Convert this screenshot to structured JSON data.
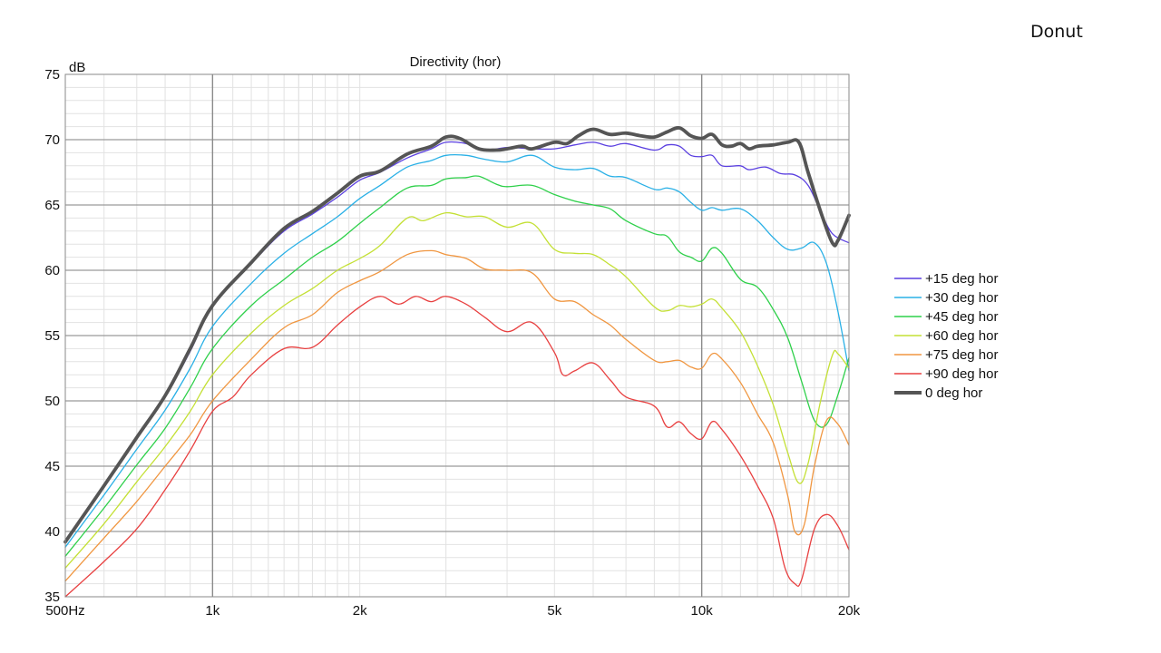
{
  "slide": {
    "label": "Donut"
  },
  "chart_data": {
    "type": "line",
    "title": "Directivity (hor)",
    "ylabel": "dB",
    "xlabel": "",
    "x_scale": "log",
    "xlim": [
      500,
      20000
    ],
    "ylim": [
      35,
      75
    ],
    "grid": true,
    "legend_position": "right",
    "x_ticks": [
      {
        "value": 500,
        "label": "500Hz"
      },
      {
        "value": 1000,
        "label": "1k"
      },
      {
        "value": 2000,
        "label": "2k"
      },
      {
        "value": 5000,
        "label": "5k"
      },
      {
        "value": 10000,
        "label": "10k"
      },
      {
        "value": 20000,
        "label": "20k"
      }
    ],
    "y_ticks": [
      35,
      40,
      45,
      50,
      55,
      60,
      65,
      70,
      75
    ],
    "series": [
      {
        "name": "+15 deg hor",
        "color": "#5a3fe0",
        "width": 1.3,
        "points": [
          [
            500,
            39.3
          ],
          [
            600,
            43.5
          ],
          [
            700,
            47.2
          ],
          [
            800,
            50.3
          ],
          [
            900,
            53.8
          ],
          [
            1000,
            57.2
          ],
          [
            1200,
            60.5
          ],
          [
            1400,
            63
          ],
          [
            1600,
            64.3
          ],
          [
            1800,
            65.6
          ],
          [
            2000,
            66.9
          ],
          [
            2200,
            67.5
          ],
          [
            2500,
            68.6
          ],
          [
            2800,
            69.3
          ],
          [
            3000,
            69.8
          ],
          [
            3300,
            69.7
          ],
          [
            3600,
            69.2
          ],
          [
            4000,
            69.4
          ],
          [
            4500,
            69.3
          ],
          [
            5000,
            69.3
          ],
          [
            5500,
            69.6
          ],
          [
            6000,
            69.8
          ],
          [
            6500,
            69.5
          ],
          [
            7000,
            69.7
          ],
          [
            8000,
            69.2
          ],
          [
            8500,
            69.6
          ],
          [
            9000,
            69.5
          ],
          [
            9500,
            68.8
          ],
          [
            10000,
            68.7
          ],
          [
            10500,
            68.8
          ],
          [
            11000,
            68
          ],
          [
            12000,
            68
          ],
          [
            12500,
            67.7
          ],
          [
            13500,
            67.9
          ],
          [
            14500,
            67.4
          ],
          [
            15500,
            67.3
          ],
          [
            16500,
            66.5
          ],
          [
            17500,
            64.5
          ],
          [
            18500,
            62.8
          ],
          [
            20000,
            62.1
          ]
        ]
      },
      {
        "name": "+30 deg hor",
        "color": "#2ab0e6",
        "width": 1.3,
        "points": [
          [
            500,
            38.8
          ],
          [
            600,
            42.8
          ],
          [
            700,
            46.3
          ],
          [
            800,
            49.3
          ],
          [
            900,
            52.5
          ],
          [
            1000,
            55.7
          ],
          [
            1200,
            59
          ],
          [
            1400,
            61.3
          ],
          [
            1600,
            62.8
          ],
          [
            1800,
            64.1
          ],
          [
            2000,
            65.5
          ],
          [
            2200,
            66.5
          ],
          [
            2500,
            67.9
          ],
          [
            2800,
            68.4
          ],
          [
            3000,
            68.8
          ],
          [
            3300,
            68.8
          ],
          [
            3600,
            68.5
          ],
          [
            4000,
            68.3
          ],
          [
            4500,
            68.8
          ],
          [
            5000,
            67.9
          ],
          [
            5500,
            67.7
          ],
          [
            6000,
            67.8
          ],
          [
            6500,
            67.2
          ],
          [
            7000,
            67.1
          ],
          [
            8000,
            66.2
          ],
          [
            8500,
            66.3
          ],
          [
            9000,
            66
          ],
          [
            9500,
            65.2
          ],
          [
            10000,
            64.6
          ],
          [
            10500,
            64.8
          ],
          [
            11000,
            64.6
          ],
          [
            12000,
            64.7
          ],
          [
            13000,
            63.8
          ],
          [
            14000,
            62.5
          ],
          [
            15000,
            61.6
          ],
          [
            16000,
            61.7
          ],
          [
            17000,
            62.1
          ],
          [
            18000,
            60.5
          ],
          [
            19000,
            56.8
          ],
          [
            20000,
            52.3
          ]
        ]
      },
      {
        "name": "+45 deg hor",
        "color": "#2ed04a",
        "width": 1.3,
        "points": [
          [
            500,
            38.1
          ],
          [
            600,
            41.8
          ],
          [
            700,
            45.1
          ],
          [
            800,
            47.9
          ],
          [
            900,
            51
          ],
          [
            1000,
            54
          ],
          [
            1200,
            57.3
          ],
          [
            1400,
            59.3
          ],
          [
            1600,
            61
          ],
          [
            1800,
            62.2
          ],
          [
            2000,
            63.6
          ],
          [
            2200,
            64.8
          ],
          [
            2500,
            66.3
          ],
          [
            2800,
            66.5
          ],
          [
            3000,
            67
          ],
          [
            3300,
            67.1
          ],
          [
            3500,
            67.2
          ],
          [
            3800,
            66.6
          ],
          [
            4000,
            66.4
          ],
          [
            4500,
            66.5
          ],
          [
            5000,
            65.8
          ],
          [
            5500,
            65.3
          ],
          [
            6000,
            65
          ],
          [
            6500,
            64.7
          ],
          [
            7000,
            63.8
          ],
          [
            8000,
            62.8
          ],
          [
            8500,
            62.6
          ],
          [
            9000,
            61.4
          ],
          [
            9500,
            61
          ],
          [
            10000,
            60.7
          ],
          [
            10500,
            61.7
          ],
          [
            11000,
            61.3
          ],
          [
            12000,
            59.3
          ],
          [
            13000,
            58.7
          ],
          [
            14000,
            57
          ],
          [
            15000,
            54.8
          ],
          [
            16000,
            51.5
          ],
          [
            17000,
            48.5
          ],
          [
            18000,
            48.2
          ],
          [
            19000,
            50.5
          ],
          [
            20000,
            53.3
          ]
        ]
      },
      {
        "name": "+60 deg hor",
        "color": "#c4e035",
        "width": 1.3,
        "points": [
          [
            500,
            37.2
          ],
          [
            600,
            40.6
          ],
          [
            700,
            43.8
          ],
          [
            800,
            46.5
          ],
          [
            900,
            49.2
          ],
          [
            1000,
            52
          ],
          [
            1200,
            55.2
          ],
          [
            1400,
            57.3
          ],
          [
            1600,
            58.6
          ],
          [
            1800,
            60
          ],
          [
            2000,
            60.9
          ],
          [
            2200,
            61.9
          ],
          [
            2500,
            64
          ],
          [
            2700,
            63.8
          ],
          [
            3000,
            64.4
          ],
          [
            3300,
            64.1
          ],
          [
            3600,
            64.1
          ],
          [
            4000,
            63.3
          ],
          [
            4500,
            63.6
          ],
          [
            5000,
            61.6
          ],
          [
            5500,
            61.3
          ],
          [
            6000,
            61.2
          ],
          [
            6500,
            60.4
          ],
          [
            7000,
            59.5
          ],
          [
            8000,
            57.2
          ],
          [
            8500,
            56.9
          ],
          [
            9000,
            57.3
          ],
          [
            9500,
            57.2
          ],
          [
            10000,
            57.4
          ],
          [
            10500,
            57.8
          ],
          [
            11000,
            57.1
          ],
          [
            12000,
            55.3
          ],
          [
            13000,
            52.7
          ],
          [
            14000,
            49.7
          ],
          [
            15000,
            46
          ],
          [
            15800,
            43.7
          ],
          [
            16500,
            45.2
          ],
          [
            17500,
            50
          ],
          [
            18500,
            53.5
          ],
          [
            19000,
            53.6
          ],
          [
            20000,
            52.5
          ]
        ]
      },
      {
        "name": "+75 deg hor",
        "color": "#f09640",
        "width": 1.3,
        "points": [
          [
            500,
            36.2
          ],
          [
            600,
            39.5
          ],
          [
            700,
            42.3
          ],
          [
            800,
            45
          ],
          [
            900,
            47.4
          ],
          [
            1000,
            50
          ],
          [
            1200,
            53.2
          ],
          [
            1400,
            55.6
          ],
          [
            1600,
            56.6
          ],
          [
            1800,
            58.3
          ],
          [
            2000,
            59.2
          ],
          [
            2200,
            59.9
          ],
          [
            2500,
            61.2
          ],
          [
            2800,
            61.5
          ],
          [
            3000,
            61.2
          ],
          [
            3300,
            60.9
          ],
          [
            3600,
            60.1
          ],
          [
            4000,
            60
          ],
          [
            4500,
            59.8
          ],
          [
            5000,
            57.8
          ],
          [
            5500,
            57.6
          ],
          [
            6000,
            56.6
          ],
          [
            6500,
            55.8
          ],
          [
            7000,
            54.7
          ],
          [
            8000,
            53.1
          ],
          [
            8500,
            53
          ],
          [
            9000,
            53.1
          ],
          [
            9500,
            52.6
          ],
          [
            10000,
            52.5
          ],
          [
            10500,
            53.6
          ],
          [
            11000,
            53.2
          ],
          [
            12000,
            51.4
          ],
          [
            13000,
            49
          ],
          [
            14000,
            46.8
          ],
          [
            15000,
            42.7
          ],
          [
            15500,
            40
          ],
          [
            16200,
            40.5
          ],
          [
            17000,
            45
          ],
          [
            18000,
            48.5
          ],
          [
            19000,
            48.2
          ],
          [
            20000,
            46.6
          ]
        ]
      },
      {
        "name": "+90 deg hor",
        "color": "#e84040",
        "width": 1.3,
        "points": [
          [
            500,
            35
          ],
          [
            600,
            37.7
          ],
          [
            700,
            40.2
          ],
          [
            800,
            43.2
          ],
          [
            900,
            46.2
          ],
          [
            1000,
            49.2
          ],
          [
            1100,
            50.3
          ],
          [
            1200,
            52
          ],
          [
            1400,
            54
          ],
          [
            1600,
            54.1
          ],
          [
            1800,
            55.8
          ],
          [
            2000,
            57.2
          ],
          [
            2200,
            58
          ],
          [
            2400,
            57.4
          ],
          [
            2600,
            58
          ],
          [
            2800,
            57.6
          ],
          [
            3000,
            58
          ],
          [
            3300,
            57.4
          ],
          [
            3600,
            56.4
          ],
          [
            4000,
            55.3
          ],
          [
            4500,
            56
          ],
          [
            5000,
            53.7
          ],
          [
            5200,
            52
          ],
          [
            5500,
            52.3
          ],
          [
            6000,
            52.9
          ],
          [
            6500,
            51.6
          ],
          [
            7000,
            50.3
          ],
          [
            8000,
            49.6
          ],
          [
            8500,
            48
          ],
          [
            9000,
            48.4
          ],
          [
            9500,
            47.5
          ],
          [
            10000,
            47.1
          ],
          [
            10500,
            48.4
          ],
          [
            11000,
            47.8
          ],
          [
            12000,
            45.8
          ],
          [
            13000,
            43.5
          ],
          [
            14000,
            41
          ],
          [
            14800,
            37.2
          ],
          [
            15500,
            36
          ],
          [
            16000,
            36.3
          ],
          [
            17000,
            40.2
          ],
          [
            18000,
            41.3
          ],
          [
            19000,
            40.4
          ],
          [
            20000,
            38.6
          ]
        ]
      },
      {
        "name": "0 deg hor",
        "color": "#555555",
        "width": 3.8,
        "points": [
          [
            500,
            39.2
          ],
          [
            600,
            43.5
          ],
          [
            700,
            47.2
          ],
          [
            800,
            50.4
          ],
          [
            900,
            54
          ],
          [
            1000,
            57.3
          ],
          [
            1200,
            60.6
          ],
          [
            1400,
            63.2
          ],
          [
            1600,
            64.5
          ],
          [
            1800,
            65.9
          ],
          [
            2000,
            67.2
          ],
          [
            2200,
            67.6
          ],
          [
            2500,
            68.9
          ],
          [
            2800,
            69.5
          ],
          [
            3000,
            70.2
          ],
          [
            3200,
            70.1
          ],
          [
            3500,
            69.3
          ],
          [
            3800,
            69.2
          ],
          [
            4000,
            69.3
          ],
          [
            4300,
            69.5
          ],
          [
            4500,
            69.3
          ],
          [
            5000,
            69.8
          ],
          [
            5300,
            69.7
          ],
          [
            5600,
            70.3
          ],
          [
            6000,
            70.8
          ],
          [
            6500,
            70.4
          ],
          [
            7000,
            70.5
          ],
          [
            7500,
            70.3
          ],
          [
            8000,
            70.2
          ],
          [
            8500,
            70.6
          ],
          [
            9000,
            70.9
          ],
          [
            9500,
            70.3
          ],
          [
            10000,
            70.1
          ],
          [
            10500,
            70.4
          ],
          [
            11000,
            69.6
          ],
          [
            11500,
            69.5
          ],
          [
            12000,
            69.7
          ],
          [
            12500,
            69.3
          ],
          [
            13000,
            69.5
          ],
          [
            14000,
            69.6
          ],
          [
            15000,
            69.8
          ],
          [
            15800,
            69.8
          ],
          [
            16500,
            67.5
          ],
          [
            17500,
            64.5
          ],
          [
            18500,
            62.1
          ],
          [
            19000,
            62.3
          ],
          [
            20000,
            64.2
          ]
        ]
      }
    ]
  }
}
